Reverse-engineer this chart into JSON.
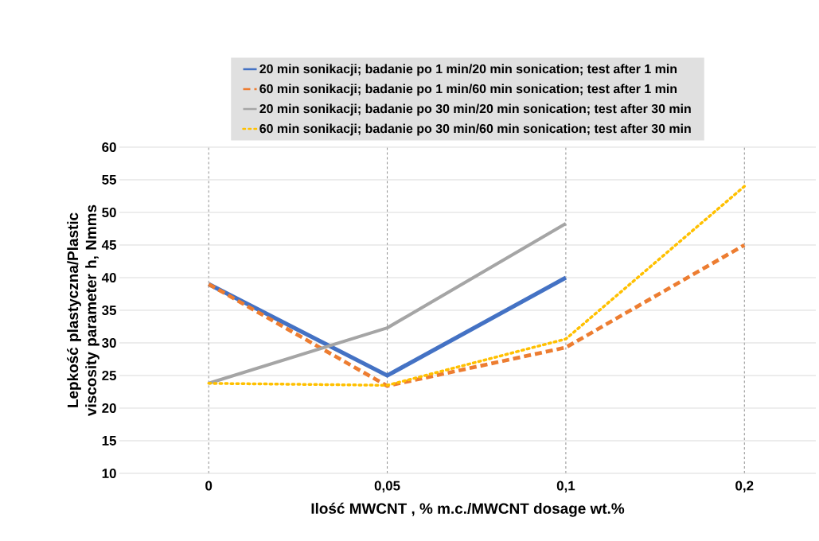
{
  "chart_data": {
    "type": "line",
    "xlabel": "Ilość MWCNT , % m.c./MWCNT dosage wt.%",
    "ylabel": "Lepkość plastyczna/Plastic viscosity parameter h, Nmms",
    "categories": [
      "0",
      "0,05",
      "0,1",
      "0,2"
    ],
    "ylim": [
      10,
      60
    ],
    "yticks": [
      10,
      15,
      20,
      25,
      30,
      35,
      40,
      45,
      50,
      55,
      60
    ],
    "grid": true,
    "legend": "top",
    "marker": "none",
    "series": [
      {
        "name": "20 min sonikacji; badanie po 1 min/20 min sonication; test after 1 min",
        "color": "#4472c4",
        "line_style": "solid",
        "values": [
          39,
          25,
          40,
          null
        ]
      },
      {
        "name": "60 min sonikacji; badanie po 1 min/60 min sonication; test after 1 min",
        "color": "#ed7d31",
        "line_style": "dashed",
        "values": [
          39,
          23.4,
          29.3,
          45
        ]
      },
      {
        "name": "20 min sonikacji; badanie po 30 min/20 min sonication; test after 30 min",
        "color": "#a5a5a5",
        "line_style": "solid",
        "values": [
          23.8,
          32.3,
          48.3,
          null
        ]
      },
      {
        "name": "60 min sonikacji; badanie po 30 min/60 min sonication; test after 30 min",
        "color": "#ffc000",
        "line_style": "dotted",
        "values": [
          23.8,
          23.5,
          30.6,
          54
        ]
      }
    ]
  }
}
